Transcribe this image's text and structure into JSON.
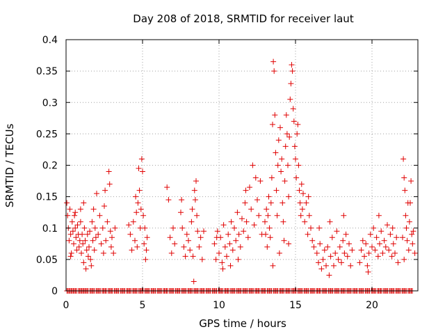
{
  "chart_data": {
    "type": "scatter",
    "title": "Day 208 of 2018, SRMTID for receiver laut",
    "xlabel": "GPS time / hours",
    "ylabel": "SRMTID / TECUs",
    "xlim": [
      0,
      23
    ],
    "ylim": [
      0,
      0.4
    ],
    "xticks": [
      0,
      5,
      10,
      15,
      20
    ],
    "xtick_labels": [
      "0",
      "5",
      "10",
      "15",
      "20"
    ],
    "yticks": [
      0,
      0.05,
      0.1,
      0.15,
      0.2,
      0.25,
      0.3,
      0.35,
      0.4
    ],
    "ytick_labels": [
      "0",
      "0.05",
      "0.1",
      "0.15",
      "0.2",
      "0.25",
      "0.3",
      "0.35",
      "0.4"
    ],
    "grid": true,
    "marker": "+",
    "series": [
      {
        "name": "SRMTID",
        "color": "#e00000",
        "points": [
          [
            0.05,
            0.14
          ],
          [
            0.1,
            0.12
          ],
          [
            0.15,
            0.1
          ],
          [
            0.2,
            0.08
          ],
          [
            0.25,
            0.13
          ],
          [
            0.3,
            0.09
          ],
          [
            0.35,
            0.06
          ],
          [
            0.4,
            0.11
          ],
          [
            0.45,
            0.095
          ],
          [
            0.5,
            0.075
          ],
          [
            0.55,
            0.12
          ],
          [
            0.6,
            0.1
          ],
          [
            0.65,
            0.085
          ],
          [
            0.7,
            0.065
          ],
          [
            0.75,
            0.105
          ],
          [
            0.8,
            0.09
          ],
          [
            0.85,
            0.07
          ],
          [
            0.9,
            0.08
          ],
          [
            0.95,
            0.11
          ],
          [
            1.0,
            0.06
          ],
          [
            1.05,
            0.09
          ],
          [
            1.1,
            0.075
          ],
          [
            1.15,
            0.045
          ],
          [
            1.2,
            0.1
          ],
          [
            1.25,
            0.08
          ],
          [
            1.3,
            0.035
          ],
          [
            1.35,
            0.065
          ],
          [
            1.4,
            0.09
          ],
          [
            1.45,
            0.055
          ],
          [
            1.5,
            0.07
          ],
          [
            1.55,
            0.095
          ],
          [
            1.6,
            0.05
          ],
          [
            1.7,
            0.11
          ],
          [
            1.75,
            0.08
          ],
          [
            1.8,
            0.13
          ],
          [
            1.85,
            0.065
          ],
          [
            1.9,
            0.1
          ],
          [
            1.95,
            0.085
          ],
          [
            2.0,
            0.155
          ],
          [
            2.1,
            0.09
          ],
          [
            2.2,
            0.12
          ],
          [
            2.3,
            0.075
          ],
          [
            2.4,
            0.1
          ],
          [
            2.5,
            0.135
          ],
          [
            2.6,
            0.08
          ],
          [
            2.7,
            0.11
          ],
          [
            2.8,
            0.19
          ],
          [
            2.85,
            0.17
          ],
          [
            2.9,
            0.095
          ],
          [
            2.95,
            0.07
          ],
          [
            3.0,
            0.085
          ],
          [
            3.1,
            0.06
          ],
          [
            3.2,
            0.1
          ],
          [
            0.3,
            0.055
          ],
          [
            1.15,
            0.14
          ],
          [
            2.45,
            0.06
          ],
          [
            2.55,
            0.16
          ],
          [
            0.6,
            0.125
          ],
          [
            0.95,
            0.13
          ],
          [
            1.65,
            0.04
          ],
          [
            4.1,
            0.105
          ],
          [
            4.2,
            0.09
          ],
          [
            4.3,
            0.065
          ],
          [
            4.4,
            0.11
          ],
          [
            4.5,
            0.08
          ],
          [
            4.6,
            0.125
          ],
          [
            4.7,
            0.14
          ],
          [
            4.75,
            0.195
          ],
          [
            4.8,
            0.16
          ],
          [
            4.85,
            0.1
          ],
          [
            4.9,
            0.13
          ],
          [
            4.95,
            0.21
          ],
          [
            5.0,
            0.19
          ],
          [
            5.05,
            0.12
          ],
          [
            5.1,
            0.075
          ],
          [
            5.15,
            0.1
          ],
          [
            5.2,
            0.05
          ],
          [
            5.3,
            0.085
          ],
          [
            4.55,
            0.15
          ],
          [
            4.65,
            0.07
          ],
          [
            5.25,
            0.065
          ],
          [
            6.6,
            0.165
          ],
          [
            6.7,
            0.145
          ],
          [
            6.8,
            0.085
          ],
          [
            6.9,
            0.06
          ],
          [
            7.0,
            0.1
          ],
          [
            7.1,
            0.075
          ],
          [
            7.5,
            0.125
          ],
          [
            7.6,
            0.1
          ],
          [
            7.7,
            0.07
          ],
          [
            7.8,
            0.055
          ],
          [
            7.9,
            0.09
          ],
          [
            8.0,
            0.08
          ],
          [
            8.1,
            0.065
          ],
          [
            8.2,
            0.11
          ],
          [
            8.3,
            0.055
          ],
          [
            8.35,
            0.015
          ],
          [
            8.4,
            0.16
          ],
          [
            8.45,
            0.145
          ],
          [
            8.5,
            0.175
          ],
          [
            8.55,
            0.12
          ],
          [
            8.6,
            0.095
          ],
          [
            8.7,
            0.07
          ],
          [
            8.8,
            0.085
          ],
          [
            8.9,
            0.05
          ],
          [
            9.0,
            0.095
          ],
          [
            7.55,
            0.145
          ],
          [
            8.25,
            0.13
          ],
          [
            9.7,
            0.075
          ],
          [
            9.8,
            0.05
          ],
          [
            9.9,
            0.095
          ],
          [
            10.0,
            0.06
          ],
          [
            10.1,
            0.085
          ],
          [
            10.2,
            0.045
          ],
          [
            10.3,
            0.105
          ],
          [
            10.4,
            0.07
          ],
          [
            10.5,
            0.055
          ],
          [
            10.6,
            0.09
          ],
          [
            10.7,
            0.075
          ],
          [
            10.8,
            0.11
          ],
          [
            10.9,
            0.065
          ],
          [
            11.0,
            0.1
          ],
          [
            11.1,
            0.08
          ],
          [
            11.2,
            0.125
          ],
          [
            11.3,
            0.09
          ],
          [
            11.4,
            0.07
          ],
          [
            11.5,
            0.115
          ],
          [
            11.6,
            0.095
          ],
          [
            11.7,
            0.14
          ],
          [
            11.8,
            0.11
          ],
          [
            11.9,
            0.085
          ],
          [
            12.0,
            0.165
          ],
          [
            12.1,
            0.13
          ],
          [
            12.2,
            0.2
          ],
          [
            12.3,
            0.105
          ],
          [
            12.4,
            0.18
          ],
          [
            12.5,
            0.145
          ],
          [
            12.6,
            0.12
          ],
          [
            12.7,
            0.175
          ],
          [
            12.8,
            0.09
          ],
          [
            10.25,
            0.035
          ],
          [
            11.25,
            0.05
          ],
          [
            11.75,
            0.16
          ],
          [
            9.85,
            0.085
          ],
          [
            10.75,
            0.04
          ],
          [
            13.0,
            0.11
          ],
          [
            13.05,
            0.09
          ],
          [
            13.1,
            0.13
          ],
          [
            13.15,
            0.07
          ],
          [
            13.2,
            0.12
          ],
          [
            13.25,
            0.15
          ],
          [
            13.3,
            0.1
          ],
          [
            13.35,
            0.085
          ],
          [
            13.4,
            0.14
          ],
          [
            13.45,
            0.18
          ],
          [
            13.5,
            0.265
          ],
          [
            13.55,
            0.365
          ],
          [
            13.6,
            0.35
          ],
          [
            13.65,
            0.28
          ],
          [
            13.7,
            0.22
          ],
          [
            13.75,
            0.16
          ],
          [
            13.8,
            0.12
          ],
          [
            13.85,
            0.2
          ],
          [
            13.9,
            0.24
          ],
          [
            14.0,
            0.26
          ],
          [
            14.05,
            0.19
          ],
          [
            14.1,
            0.21
          ],
          [
            14.15,
            0.14
          ],
          [
            14.2,
            0.11
          ],
          [
            14.25,
            0.08
          ],
          [
            14.3,
            0.175
          ],
          [
            14.35,
            0.23
          ],
          [
            14.4,
            0.28
          ],
          [
            14.45,
            0.25
          ],
          [
            14.5,
            0.2
          ],
          [
            14.55,
            0.15
          ],
          [
            14.6,
            0.245
          ],
          [
            14.65,
            0.305
          ],
          [
            14.7,
            0.33
          ],
          [
            14.75,
            0.36
          ],
          [
            14.8,
            0.35
          ],
          [
            14.85,
            0.29
          ],
          [
            14.9,
            0.27
          ],
          [
            14.95,
            0.23
          ],
          [
            15.0,
            0.21
          ],
          [
            15.05,
            0.18
          ],
          [
            15.1,
            0.25
          ],
          [
            15.15,
            0.265
          ],
          [
            15.2,
            0.2
          ],
          [
            15.25,
            0.16
          ],
          [
            15.3,
            0.14
          ],
          [
            15.35,
            0.12
          ],
          [
            15.4,
            0.17
          ],
          [
            15.45,
            0.13
          ],
          [
            15.5,
            0.155
          ],
          [
            15.6,
            0.11
          ],
          [
            15.7,
            0.14
          ],
          [
            15.8,
            0.09
          ],
          [
            15.9,
            0.12
          ],
          [
            16.0,
            0.1
          ],
          [
            16.1,
            0.08
          ],
          [
            16.2,
            0.07
          ],
          [
            13.52,
            0.04
          ],
          [
            13.95,
            0.06
          ],
          [
            14.55,
            0.075
          ],
          [
            15.85,
            0.15
          ],
          [
            16.4,
            0.06
          ],
          [
            16.5,
            0.045
          ],
          [
            16.6,
            0.075
          ],
          [
            16.7,
            0.035
          ],
          [
            16.8,
            0.05
          ],
          [
            16.9,
            0.065
          ],
          [
            17.0,
            0.04
          ],
          [
            17.1,
            0.07
          ],
          [
            17.2,
            0.025
          ],
          [
            17.3,
            0.055
          ],
          [
            17.4,
            0.085
          ],
          [
            17.5,
            0.04
          ],
          [
            17.6,
            0.06
          ],
          [
            17.7,
            0.095
          ],
          [
            17.8,
            0.05
          ],
          [
            17.9,
            0.07
          ],
          [
            18.0,
            0.045
          ],
          [
            18.1,
            0.08
          ],
          [
            18.2,
            0.06
          ],
          [
            18.3,
            0.09
          ],
          [
            18.4,
            0.055
          ],
          [
            18.5,
            0.075
          ],
          [
            18.6,
            0.04
          ],
          [
            18.7,
            0.065
          ],
          [
            16.55,
            0.1
          ],
          [
            17.25,
            0.11
          ],
          [
            18.15,
            0.12
          ],
          [
            19.2,
            0.045
          ],
          [
            19.3,
            0.065
          ],
          [
            19.4,
            0.08
          ],
          [
            19.5,
            0.055
          ],
          [
            19.6,
            0.075
          ],
          [
            19.7,
            0.04
          ],
          [
            19.8,
            0.06
          ],
          [
            19.9,
            0.09
          ],
          [
            20.0,
            0.07
          ],
          [
            20.1,
            0.1
          ],
          [
            20.2,
            0.065
          ],
          [
            20.3,
            0.085
          ],
          [
            20.4,
            0.055
          ],
          [
            20.5,
            0.075
          ],
          [
            20.6,
            0.095
          ],
          [
            20.7,
            0.06
          ],
          [
            20.8,
            0.08
          ],
          [
            20.9,
            0.07
          ],
          [
            21.0,
            0.105
          ],
          [
            21.1,
            0.065
          ],
          [
            21.2,
            0.09
          ],
          [
            21.3,
            0.055
          ],
          [
            21.4,
            0.075
          ],
          [
            21.5,
            0.06
          ],
          [
            21.6,
            0.085
          ],
          [
            21.7,
            0.045
          ],
          [
            19.75,
            0.03
          ],
          [
            20.45,
            0.12
          ],
          [
            21.35,
            0.1
          ],
          [
            22.0,
            0.085
          ],
          [
            22.05,
            0.21
          ],
          [
            22.1,
            0.18
          ],
          [
            22.15,
            0.16
          ],
          [
            22.2,
            0.12
          ],
          [
            22.25,
            0.1
          ],
          [
            22.3,
            0.08
          ],
          [
            22.35,
            0.14
          ],
          [
            22.4,
            0.065
          ],
          [
            22.45,
            0.11
          ],
          [
            22.5,
            0.14
          ],
          [
            22.55,
            0.175
          ],
          [
            22.6,
            0.09
          ],
          [
            22.65,
            0.075
          ],
          [
            22.7,
            0.095
          ],
          [
            22.8,
            0.06
          ],
          [
            22.1,
            0.05
          ]
        ],
        "zero_points_x": [
          0.2,
          0.55,
          0.95,
          1.3,
          1.7,
          2.1,
          2.5,
          2.9,
          3.3,
          3.7,
          4.1,
          4.5,
          4.9,
          5.3,
          5.7,
          6.1,
          6.5,
          6.9,
          7.3,
          7.7,
          8.1,
          8.5,
          8.9,
          9.3,
          9.7,
          10.1,
          10.5,
          10.9,
          11.3,
          11.7,
          12.1,
          12.5,
          12.9,
          13.3,
          13.7,
          14.1,
          14.5,
          14.9,
          15.3,
          15.7,
          16.1,
          16.5,
          16.9,
          17.3,
          17.7,
          18.1,
          18.5,
          18.9,
          19.3,
          19.7,
          20.1,
          20.5,
          20.9,
          21.3,
          21.7,
          22.1,
          22.5
        ]
      }
    ]
  }
}
